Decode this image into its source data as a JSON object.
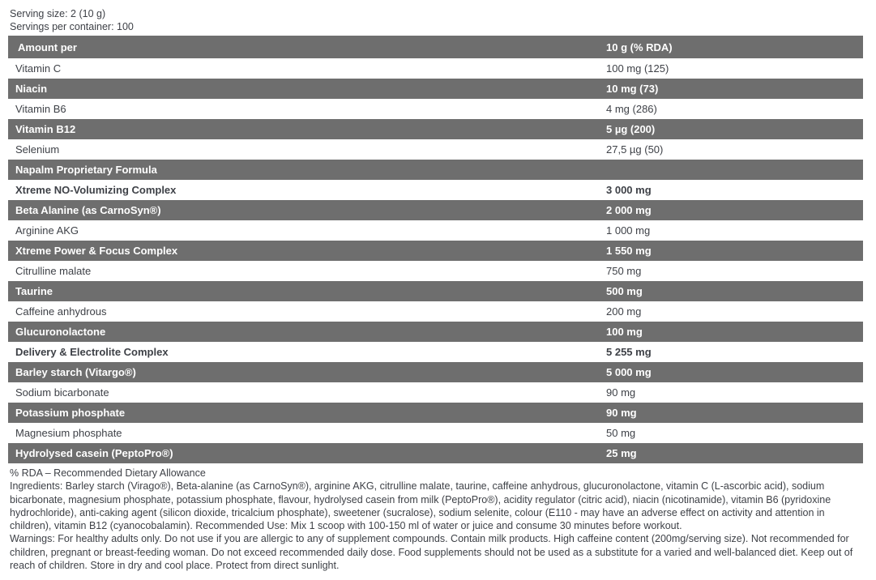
{
  "header": {
    "serving_size": "Serving size: 2 (10 g)",
    "servings_per_container": "Servings per container: 100"
  },
  "table": {
    "columns": [
      "Amount per",
      "10 g (% RDA)"
    ],
    "rows": [
      {
        "name": "Vitamin C",
        "value": "100 mg (125)",
        "style": "light",
        "bold": false
      },
      {
        "name": "Niacin",
        "value": "10 mg (73)",
        "style": "dark",
        "bold": false
      },
      {
        "name": "Vitamin B6",
        "value": "4 mg (286)",
        "style": "light",
        "bold": false
      },
      {
        "name": "Vitamin B12",
        "value": "5 µg (200)",
        "style": "dark",
        "bold": false
      },
      {
        "name": "Selenium",
        "value": "27,5 µg (50)",
        "style": "light",
        "bold": false
      },
      {
        "name": "Napalm Proprietary Formula",
        "value": "",
        "style": "dark",
        "bold": true
      },
      {
        "name": "Xtreme NO-Volumizing Complex",
        "value": "3 000 mg",
        "style": "light",
        "bold": true
      },
      {
        "name": "Beta Alanine (as CarnoSyn®)",
        "value": "2 000 mg",
        "style": "dark",
        "bold": false
      },
      {
        "name": "Arginine AKG",
        "value": "1 000 mg",
        "style": "light",
        "bold": false
      },
      {
        "name": "Xtreme Power & Focus Complex",
        "value": "1 550 mg",
        "style": "dark",
        "bold": true
      },
      {
        "name": "Citrulline malate",
        "value": "750 mg",
        "style": "light",
        "bold": false
      },
      {
        "name": "Taurine",
        "value": "500 mg",
        "style": "dark",
        "bold": false
      },
      {
        "name": "Caffeine anhydrous",
        "value": "200 mg",
        "style": "light",
        "bold": false
      },
      {
        "name": "Glucuronolactone",
        "value": "100 mg",
        "style": "dark",
        "bold": false
      },
      {
        "name": "Delivery & Electrolite Complex",
        "value": "5 255 mg",
        "style": "light",
        "bold": true
      },
      {
        "name": "Barley starch (Vitargo®)",
        "value": "5 000 mg",
        "style": "dark",
        "bold": false
      },
      {
        "name": "Sodium bicarbonate",
        "value": "90 mg",
        "style": "light",
        "bold": false
      },
      {
        "name": "Potassium phosphate",
        "value": "90 mg",
        "style": "dark",
        "bold": false
      },
      {
        "name": "Magnesium phosphate",
        "value": "50 mg",
        "style": "light",
        "bold": false
      },
      {
        "name": "Hydrolysed casein (PeptoPro®)",
        "value": "25 mg",
        "style": "dark",
        "bold": false
      }
    ]
  },
  "footnotes": {
    "rda": "% RDA – Recommended Dietary Allowance",
    "ingredients": "Ingredients: Barley starch (Virago®), Beta-alanine (as CarnoSyn®), arginine AKG, citrulline malate, taurine, caffeine anhydrous, glucuronolactone, vitamin C (L-ascorbic acid), sodium bicarbonate, magnesium phosphate, potassium phosphate, flavour, hydrolysed casein from milk (PeptoPro®), acidity regulator (citric acid), niacin (nicotinamide), vitamin B6 (pyridoxine hydrochloride), anti-caking agent (silicon dioxide, tricalcium phosphate), sweetener (sucralose), sodium selenite, colour (E110 - may have an adverse effect on activity and attention in children), vitamin B12 (cyanocobalamin). Recommended Use: Mix 1 scoop with 100-150 ml of water or juice and consume 30 minutes before workout.",
    "warnings": "Warnings: For healthy adults only. Do not use if you are allergic to any of supplement compounds. Contain milk products. High caffeine content (200mg/serving size). Not recommended for children, pregnant or breast-feeding woman. Do not exceed recommended daily dose. Food supplements should not be used as a substitute for a varied and well-balanced diet. Keep out of reach of children. Store in dry and cool place. Protect from direct sunlight."
  },
  "colors": {
    "row_dark": "#6e6e6e",
    "text_dark": "#3e4147",
    "text_light": "#ffffff"
  }
}
